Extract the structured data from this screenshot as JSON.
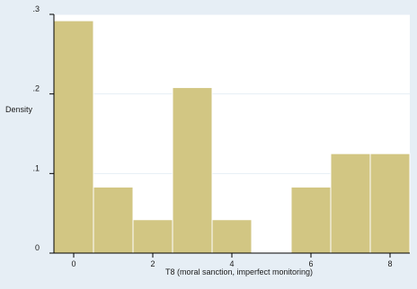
{
  "chart_data": {
    "type": "bar",
    "xlabel": "T8 (moral sanction, imperfect monitoring)",
    "ylabel": "Density",
    "xlim": [
      -0.5,
      8.5
    ],
    "ylim": [
      0,
      0.3
    ],
    "x_ticks": [
      0,
      2,
      4,
      6,
      8
    ],
    "x_tick_labels": [
      "0",
      "2",
      "4",
      "6",
      "8"
    ],
    "y_ticks": [
      0,
      0.1,
      0.2,
      0.3
    ],
    "y_tick_labels": [
      "0",
      ".1",
      ".2",
      ".3"
    ],
    "bins": [
      {
        "x0": -0.5,
        "x1": 0.5,
        "density": 0.292
      },
      {
        "x0": 0.5,
        "x1": 1.5,
        "density": 0.083
      },
      {
        "x0": 1.5,
        "x1": 2.5,
        "density": 0.042
      },
      {
        "x0": 2.5,
        "x1": 3.5,
        "density": 0.208
      },
      {
        "x0": 3.5,
        "x1": 4.5,
        "density": 0.042
      },
      {
        "x0": 4.5,
        "x1": 5.5,
        "density": 0
      },
      {
        "x0": 5.5,
        "x1": 6.5,
        "density": 0.083
      },
      {
        "x0": 6.5,
        "x1": 7.5,
        "density": 0.125
      },
      {
        "x0": 7.5,
        "x1": 8.5,
        "density": 0.125
      }
    ],
    "bar_color": "#d2c683",
    "bar_edge_color": "#ffffff",
    "plot_background": "#ffffff",
    "outer_background": "#e6eef5",
    "grid": "horizontal",
    "grid_color": "#e6eef5"
  }
}
